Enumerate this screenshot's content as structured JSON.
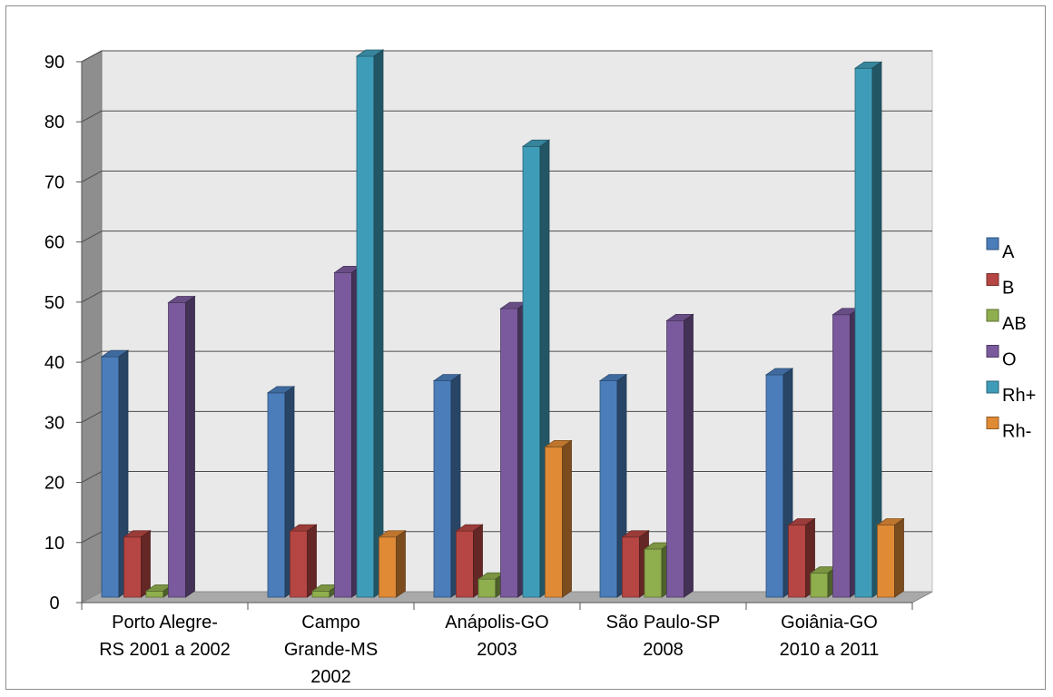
{
  "chart_data": {
    "type": "bar",
    "style": "3d-clustered-column",
    "categories": [
      [
        "Porto Alegre-",
        "RS 2001 a 2002"
      ],
      [
        "Campo",
        "Grande-MS",
        "2002"
      ],
      [
        "Anápolis-GO",
        "2003"
      ],
      [
        "São Paulo-SP",
        "2008"
      ],
      [
        "Goiânia-GO",
        "2010 a 2011"
      ]
    ],
    "series": [
      {
        "name": "A",
        "color": "#4A7DBA",
        "values": [
          40,
          34,
          36,
          36,
          37
        ]
      },
      {
        "name": "B",
        "color": "#B54643",
        "values": [
          10,
          11,
          11,
          10,
          12
        ]
      },
      {
        "name": "AB",
        "color": "#8FAE4E",
        "values": [
          1,
          1,
          3,
          8,
          4
        ]
      },
      {
        "name": "O",
        "color": "#7A5A9C",
        "values": [
          49,
          54,
          48,
          46,
          47
        ]
      },
      {
        "name": "Rh+",
        "color": "#3F9CB8",
        "values": [
          null,
          90,
          75,
          null,
          88
        ]
      },
      {
        "name": "Rh-",
        "color": "#E08A36",
        "values": [
          null,
          10,
          25,
          null,
          12
        ]
      }
    ],
    "y_ticks": [
      "0",
      "10",
      "20",
      "30",
      "40",
      "50",
      "60",
      "70",
      "80",
      "90"
    ],
    "ylim": [
      0,
      90
    ],
    "grid": true,
    "legend_position": "right"
  }
}
